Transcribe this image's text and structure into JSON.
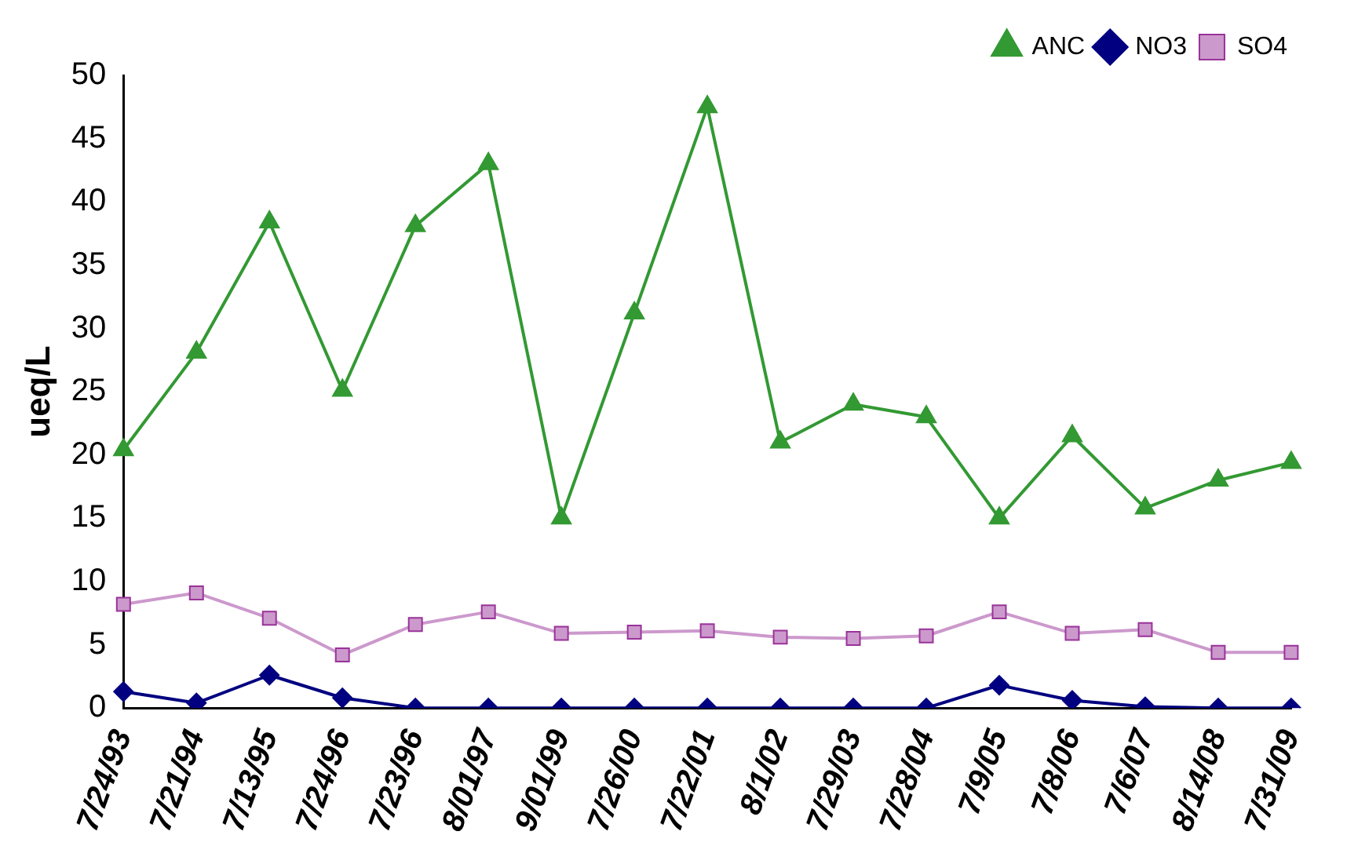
{
  "chart_data": {
    "type": "line",
    "ylabel": "ueq/L",
    "categories": [
      "7/24/93",
      "7/21/94",
      "7/13/95",
      "7/24/96",
      "7/23/96",
      "8/01/97",
      "9/01/99",
      "7/26/00",
      "7/22/01",
      "8/1/02",
      "7/29/03",
      "7/28/04",
      "7/9/05",
      "7/8/06",
      "7/6/07",
      "8/14/08",
      "7/31/09"
    ],
    "series": [
      {
        "name": "ANC",
        "color": "#339933",
        "marker": "triangle",
        "values": [
          20.4,
          28.1,
          38.4,
          25.1,
          38.1,
          43.0,
          15.0,
          31.2,
          47.5,
          21.0,
          24.0,
          23.0,
          15.0,
          21.5,
          15.8,
          18.0,
          19.4
        ]
      },
      {
        "name": "NO3",
        "color": "#000080",
        "marker": "diamond",
        "values": [
          1.3,
          0.4,
          2.6,
          0.8,
          0,
          0,
          0,
          0,
          0,
          0,
          0,
          0,
          1.8,
          0.6,
          0.1,
          0,
          0
        ]
      },
      {
        "name": "SO4",
        "color": "#cc99cc",
        "marker": "square",
        "values": [
          8.2,
          9.1,
          7.1,
          4.2,
          6.6,
          7.6,
          5.9,
          6.0,
          6.1,
          5.6,
          5.5,
          5.7,
          7.6,
          5.9,
          6.2,
          4.4,
          4.4
        ]
      }
    ],
    "ylim": [
      0,
      50
    ],
    "yticks": [
      0,
      5,
      10,
      15,
      20,
      25,
      30,
      35,
      40,
      45,
      50
    ],
    "grid": false,
    "legend": "top right",
    "line_style": "solid"
  }
}
